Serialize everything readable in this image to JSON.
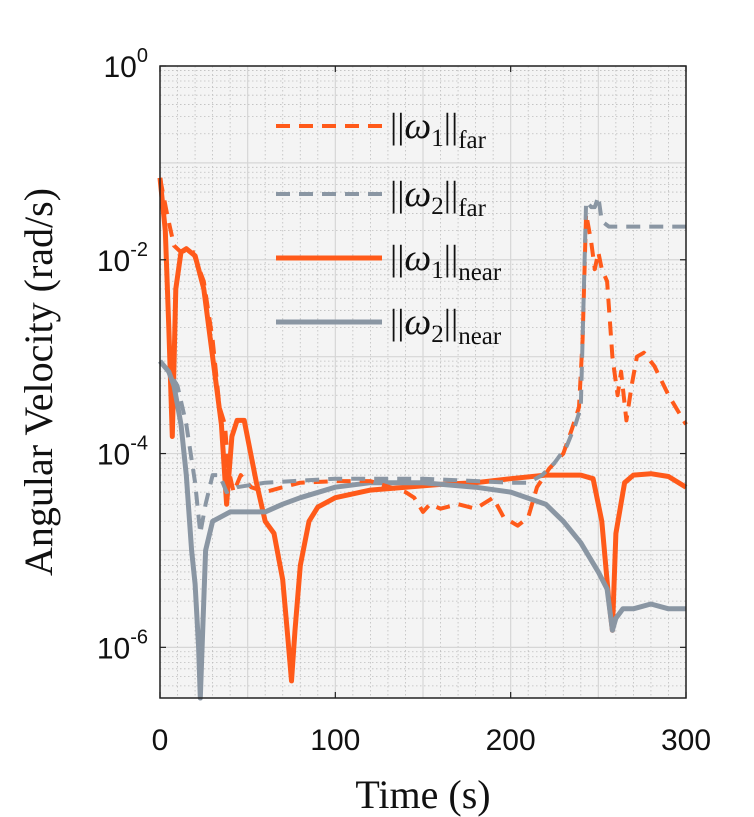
{
  "chart_data": {
    "type": "line",
    "xlabel": "Time (s)",
    "ylabel": "Angular Velocity (rad/s)",
    "xscale": "linear",
    "yscale": "log",
    "xlim": [
      0,
      300
    ],
    "ylim": [
      3e-07,
      1
    ],
    "grid": true,
    "legend_position": "top-right",
    "x_ticks": [
      {
        "label": "0",
        "value": 0
      },
      {
        "label": "100",
        "value": 100
      },
      {
        "label": "200",
        "value": 200
      },
      {
        "label": "300",
        "value": 300
      }
    ],
    "y_ticks": [
      {
        "base": "10",
        "exp": "0",
        "value": 1
      },
      {
        "base": "10",
        "exp": "-2",
        "value": 0.01
      },
      {
        "base": "10",
        "exp": "-4",
        "value": 0.0001
      },
      {
        "base": "10",
        "exp": "-6",
        "value": 1e-06
      }
    ],
    "series": [
      {
        "name": "||ω1||far",
        "symbol": "ω",
        "index": "1",
        "subscript": "far",
        "color": "#ff5a1a",
        "style": "dashed",
        "points": [
          [
            0,
            0.07
          ],
          [
            4,
            0.03
          ],
          [
            8,
            0.014
          ],
          [
            12,
            0.012
          ],
          [
            18,
            0.013
          ],
          [
            25,
            0.006
          ],
          [
            30,
            0.0015
          ],
          [
            34,
            0.0003
          ],
          [
            37,
            0.0002
          ],
          [
            39,
            7e-05
          ],
          [
            42,
            4e-05
          ],
          [
            46,
            6e-05
          ],
          [
            52,
            4.5e-05
          ],
          [
            60,
            4e-05
          ],
          [
            70,
            4.5e-05
          ],
          [
            80,
            5e-05
          ],
          [
            100,
            5.2e-05
          ],
          [
            120,
            5.2e-05
          ],
          [
            140,
            4e-05
          ],
          [
            145,
            3.5e-05
          ],
          [
            150,
            2.5e-05
          ],
          [
            154,
            3e-05
          ],
          [
            160,
            2.7e-05
          ],
          [
            170,
            3e-05
          ],
          [
            180,
            2.7e-05
          ],
          [
            190,
            3.5e-05
          ],
          [
            196,
            2.2e-05
          ],
          [
            204,
            1.8e-05
          ],
          [
            210,
            2.2e-05
          ],
          [
            215,
            4.5e-05
          ],
          [
            222,
            7e-05
          ],
          [
            230,
            0.0001
          ],
          [
            235,
            0.00018
          ],
          [
            239,
            0.0003
          ],
          [
            241,
            0.0015
          ],
          [
            243,
            0.03
          ],
          [
            246,
            0.015
          ],
          [
            248,
            0.008
          ],
          [
            250,
            0.012
          ],
          [
            252,
            0.008
          ],
          [
            255,
            0.006
          ],
          [
            258,
            0.001
          ],
          [
            261,
            0.0004
          ],
          [
            263,
            0.0007
          ],
          [
            266,
            0.00022
          ],
          [
            269,
            0.0005
          ],
          [
            272,
            0.001
          ],
          [
            276,
            0.0011
          ],
          [
            282,
            0.0008
          ],
          [
            290,
            0.0004
          ],
          [
            300,
            0.0002
          ]
        ]
      },
      {
        "name": "||ω2||far",
        "symbol": "ω",
        "index": "2",
        "subscript": "far",
        "color": "#8a96a3",
        "style": "dashed",
        "points": [
          [
            0,
            0.0009
          ],
          [
            5,
            0.0007
          ],
          [
            10,
            0.0005
          ],
          [
            15,
            0.0002
          ],
          [
            20,
            5e-05
          ],
          [
            23,
            1.5e-05
          ],
          [
            26,
            3e-05
          ],
          [
            30,
            6e-05
          ],
          [
            34,
            6e-05
          ],
          [
            38,
            4e-05
          ],
          [
            44,
            4.5e-05
          ],
          [
            60,
            5e-05
          ],
          [
            100,
            5.5e-05
          ],
          [
            150,
            5.5e-05
          ],
          [
            200,
            5e-05
          ],
          [
            210,
            5e-05
          ],
          [
            218,
            6e-05
          ],
          [
            225,
            8e-05
          ],
          [
            232,
            0.00012
          ],
          [
            237,
            0.0002
          ],
          [
            240,
            0.0003
          ],
          [
            241,
            0.0015
          ],
          [
            243,
            0.04
          ],
          [
            246,
            0.035
          ],
          [
            248,
            0.035
          ],
          [
            250,
            0.045
          ],
          [
            252,
            0.025
          ],
          [
            256,
            0.022
          ],
          [
            300,
            0.022
          ]
        ]
      },
      {
        "name": "||ω1||near",
        "symbol": "ω",
        "index": "1",
        "subscript": "near",
        "color": "#ff5a1a",
        "style": "solid",
        "points": [
          [
            0,
            0.07
          ],
          [
            3,
            0.02
          ],
          [
            5,
            0.002
          ],
          [
            7,
            0.00015
          ],
          [
            9,
            0.005
          ],
          [
            12,
            0.012
          ],
          [
            15,
            0.013
          ],
          [
            20,
            0.011
          ],
          [
            25,
            0.005
          ],
          [
            30,
            0.001
          ],
          [
            35,
            0.0002
          ],
          [
            38,
            3e-05
          ],
          [
            41,
            0.00015
          ],
          [
            44,
            0.00022
          ],
          [
            48,
            0.00022
          ],
          [
            55,
            5e-05
          ],
          [
            60,
            2e-05
          ],
          [
            65,
            1.5e-05
          ],
          [
            70,
            5e-06
          ],
          [
            73,
            1.2e-06
          ],
          [
            75,
            4.5e-07
          ],
          [
            77,
            1.5e-06
          ],
          [
            80,
            7e-06
          ],
          [
            85,
            2e-05
          ],
          [
            90,
            2.8e-05
          ],
          [
            100,
            3.5e-05
          ],
          [
            120,
            4.2e-05
          ],
          [
            140,
            4.5e-05
          ],
          [
            160,
            4.8e-05
          ],
          [
            180,
            5e-05
          ],
          [
            200,
            5.5e-05
          ],
          [
            220,
            6e-05
          ],
          [
            240,
            6e-05
          ],
          [
            247,
            5.5e-05
          ],
          [
            252,
            2e-05
          ],
          [
            256,
            3e-06
          ],
          [
            258,
            1.5e-06
          ],
          [
            260,
            1.5e-05
          ],
          [
            265,
            5e-05
          ],
          [
            270,
            6e-05
          ],
          [
            280,
            6.2e-05
          ],
          [
            290,
            5.8e-05
          ],
          [
            300,
            4.5e-05
          ]
        ]
      },
      {
        "name": "||ω2||near",
        "symbol": "ω",
        "index": "2",
        "subscript": "near",
        "color": "#8a96a3",
        "style": "solid",
        "points": [
          [
            0,
            0.0009
          ],
          [
            5,
            0.0007
          ],
          [
            8,
            0.0005
          ],
          [
            12,
            0.0002
          ],
          [
            15,
            6e-05
          ],
          [
            18,
            1e-05
          ],
          [
            20,
            4.5e-06
          ],
          [
            22,
            1e-06
          ],
          [
            23,
            3e-07
          ],
          [
            24,
            1e-06
          ],
          [
            26,
            1e-05
          ],
          [
            30,
            2e-05
          ],
          [
            40,
            2.5e-05
          ],
          [
            60,
            2.5e-05
          ],
          [
            70,
            3e-05
          ],
          [
            80,
            3.5e-05
          ],
          [
            100,
            4.5e-05
          ],
          [
            120,
            5e-05
          ],
          [
            150,
            5e-05
          ],
          [
            180,
            4.5e-05
          ],
          [
            200,
            4e-05
          ],
          [
            220,
            3e-05
          ],
          [
            230,
            2e-05
          ],
          [
            240,
            1.2e-05
          ],
          [
            250,
            6e-06
          ],
          [
            255,
            4e-06
          ],
          [
            258,
            1.5e-06
          ],
          [
            260,
            2e-06
          ],
          [
            264,
            2.5e-06
          ],
          [
            270,
            2.5e-06
          ],
          [
            280,
            2.8e-06
          ],
          [
            290,
            2.5e-06
          ],
          [
            300,
            2.5e-06
          ]
        ]
      }
    ]
  }
}
